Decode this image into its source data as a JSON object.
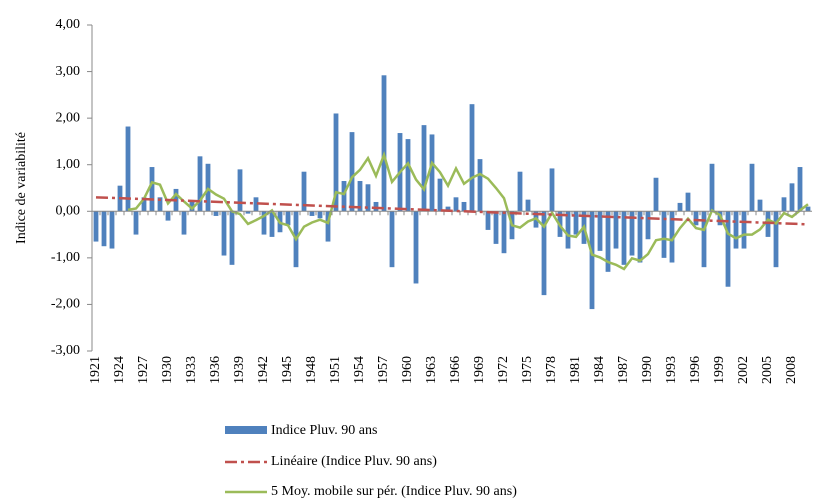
{
  "chart_data": {
    "type": "bar",
    "y_label": "Indice de variabilité",
    "categories": [
      "1921",
      null,
      null,
      "1924",
      null,
      null,
      "1927",
      null,
      null,
      "1930",
      null,
      null,
      "1933",
      null,
      null,
      "1936",
      null,
      null,
      "1939",
      null,
      null,
      "1942",
      null,
      null,
      "1945",
      null,
      null,
      "1948",
      null,
      null,
      "1951",
      null,
      null,
      "1954",
      null,
      null,
      "1957",
      null,
      null,
      "1960",
      null,
      null,
      "1963",
      null,
      null,
      "1966",
      null,
      null,
      "1969",
      null,
      null,
      "1972",
      null,
      null,
      "1975",
      null,
      null,
      "1978",
      null,
      null,
      "1981",
      null,
      null,
      "1984",
      null,
      null,
      "1987",
      null,
      null,
      "1990",
      null,
      null,
      "1993",
      null,
      null,
      "1996",
      null,
      null,
      "1999",
      null,
      null,
      "2002",
      null,
      null,
      "2005",
      null,
      null,
      "2008",
      null,
      null
    ],
    "series": [
      {
        "name": "Indice Pluv. 90 ans",
        "color": "#4f81bd",
        "values": [
          -0.65,
          -0.75,
          -0.8,
          0.55,
          1.82,
          -0.5,
          0.3,
          0.95,
          0.3,
          -0.2,
          0.48,
          -0.5,
          0.2,
          1.18,
          1.02,
          -0.1,
          -0.95,
          -1.15,
          0.9,
          -0.05,
          0.3,
          -0.5,
          -0.55,
          -0.45,
          -0.3,
          -1.2,
          0.85,
          -0.1,
          -0.15,
          -0.65,
          2.1,
          0.65,
          1.7,
          0.65,
          0.58,
          0.2,
          2.92,
          -1.2,
          1.68,
          1.55,
          -1.55,
          1.85,
          1.65,
          0.7,
          0.1,
          0.3,
          0.2,
          2.3,
          1.12,
          -0.4,
          -0.7,
          -0.9,
          -0.6,
          0.85,
          0.25,
          -0.35,
          -1.8,
          0.92,
          -0.55,
          -0.8,
          -0.5,
          -0.7,
          -2.1,
          -0.85,
          -1.3,
          -0.8,
          -1.15,
          -0.95,
          -1.1,
          -0.6,
          0.72,
          -1.0,
          -1.1,
          0.18,
          0.4,
          -0.3,
          -1.2,
          1.02,
          -0.3,
          -1.62,
          -0.8,
          -0.8,
          1.02,
          0.25,
          -0.55,
          -1.2,
          0.3,
          0.6,
          0.95,
          0.1
        ]
      },
      {
        "name": "5 Moy. mobile sur pér. (Indice Pluv. 90 ans)",
        "color": "#9bbb59",
        "values": [
          null,
          null,
          null,
          null,
          0.03,
          0.06,
          0.27,
          0.62,
          0.57,
          0.17,
          0.37,
          0.21,
          0.06,
          0.23,
          0.48,
          0.36,
          0.27,
          0,
          -0.06,
          -0.27,
          -0.19,
          -0.1,
          0.02,
          -0.25,
          -0.3,
          -0.6,
          -0.33,
          -0.24,
          -0.18,
          -0.25,
          0.41,
          0.37,
          0.73,
          0.89,
          1.14,
          0.76,
          1.21,
          0.63,
          0.84,
          1.03,
          0.68,
          0.47,
          1.04,
          0.84,
          0.55,
          0.92,
          0.59,
          0.72,
          0.8,
          0.7,
          0.5,
          0.28,
          -0.3,
          -0.35,
          -0.22,
          -0.15,
          -0.33,
          -0.03,
          -0.31,
          -0.52,
          -0.55,
          -0.33,
          -0.93,
          -0.99,
          -1.09,
          -1.15,
          -1.24,
          -1.01,
          -1.06,
          -0.92,
          -0.62,
          -0.59,
          -0.62,
          -0.36,
          -0.16,
          -0.36,
          -0.4,
          0.02,
          -0.08,
          -0.48,
          -0.58,
          -0.5,
          -0.5,
          -0.39,
          -0.18,
          -0.26,
          -0.04,
          -0.12,
          0.02,
          0.15
        ]
      }
    ],
    "trend": {
      "name": "Linéaire (Indice Pluv. 90 ans)",
      "color": "#c0504d",
      "values": [
        0.3,
        -0.28
      ]
    },
    "ylim": [
      -3,
      4
    ],
    "yticks": [
      {
        "value": -3,
        "label": "-3,00"
      },
      {
        "value": -2,
        "label": "-2,00"
      },
      {
        "value": -1,
        "label": "-1,00"
      },
      {
        "value": 0,
        "label": "0,00"
      },
      {
        "value": 1,
        "label": "1,00"
      },
      {
        "value": 2,
        "label": "2,00"
      },
      {
        "value": 3,
        "label": "3,00"
      },
      {
        "value": 4,
        "label": "4,00"
      }
    ]
  }
}
